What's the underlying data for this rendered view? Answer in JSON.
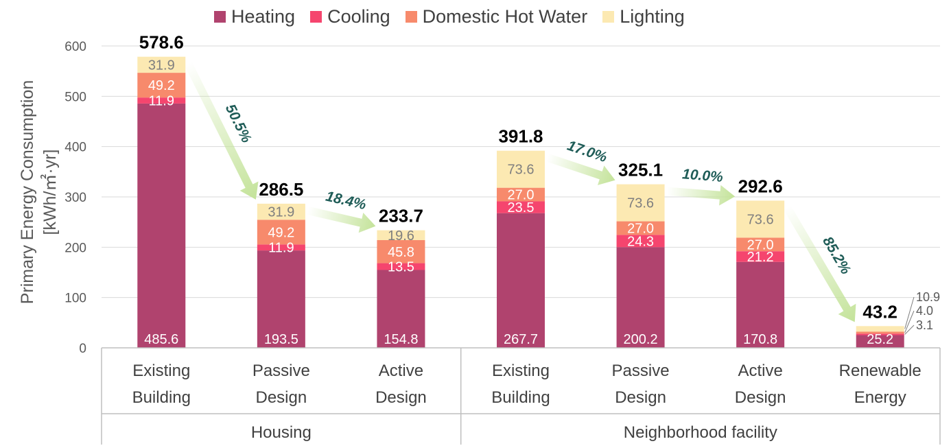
{
  "chart_data": {
    "type": "bar",
    "stacked": true,
    "ylabel": "Primary Energy Consumption",
    "ylabel_unit": "[kWh/㎡·yr]",
    "ylim": [
      0,
      600
    ],
    "yticks": [
      0,
      100,
      200,
      300,
      400,
      500,
      600
    ],
    "grid": true,
    "legend": {
      "placement": "top"
    },
    "categories": [
      "Existing Building",
      "Passive Design",
      "Active Design",
      "Existing Building",
      "Passive Design",
      "Active Design",
      "Renewable Energy"
    ],
    "category_lines": [
      [
        "Existing",
        "Building"
      ],
      [
        "Passive",
        "Design"
      ],
      [
        "Active",
        "Design"
      ],
      [
        "Existing",
        "Building"
      ],
      [
        "Passive",
        "Design"
      ],
      [
        "Active",
        "Design"
      ],
      [
        "Renewable",
        "Energy"
      ]
    ],
    "groups": [
      {
        "label": "Housing",
        "start": 0,
        "end": 2
      },
      {
        "label": "Neighborhood facility",
        "start": 3,
        "end": 6
      }
    ],
    "series": [
      {
        "name": "Heating",
        "color": "#B0436E",
        "label_color": "#FFFFFF",
        "values": [
          485.6,
          193.5,
          154.8,
          267.7,
          200.2,
          170.8,
          25.2
        ],
        "labels": [
          "485.6",
          "193.5",
          "154.8",
          "267.7",
          "200.2",
          "170.8",
          "25.2"
        ]
      },
      {
        "name": "Cooling",
        "color": "#F5456E",
        "label_color": "#FFFFFF",
        "values": [
          11.9,
          11.9,
          13.5,
          23.5,
          24.3,
          21.2,
          3.1
        ],
        "labels": [
          "11.9",
          "11.9",
          "13.5",
          "23.5",
          "24.3",
          "21.2",
          ""
        ]
      },
      {
        "name": "Domestic Hot Water",
        "color": "#F78A6C",
        "label_color": "#FFFFFF",
        "values": [
          49.2,
          49.2,
          45.8,
          27.0,
          27.0,
          27.0,
          4.0
        ],
        "labels": [
          "49.2",
          "49.2",
          "45.8",
          "27.0",
          "27.0",
          "27.0",
          ""
        ]
      },
      {
        "name": "Lighting",
        "color": "#FCE9B2",
        "label_color": "#7F7F7F",
        "values": [
          31.9,
          31.9,
          19.6,
          73.6,
          73.6,
          73.6,
          10.9
        ],
        "labels": [
          "31.9",
          "31.9",
          "19.6",
          "73.6",
          "73.6",
          "73.6",
          ""
        ]
      }
    ],
    "totals": [
      "578.6",
      "286.5",
      "233.7",
      "391.8",
      "325.1",
      "292.6",
      "43.2"
    ],
    "side_labels": [
      "10.9",
      "4.0",
      "3.1"
    ],
    "reductions": [
      {
        "from": 0,
        "to": 1,
        "label": "50.5%"
      },
      {
        "from": 1,
        "to": 2,
        "label": "18.4%"
      },
      {
        "from": 3,
        "to": 4,
        "label": "17.0%"
      },
      {
        "from": 4,
        "to": 5,
        "label": "10.0%"
      },
      {
        "from": 5,
        "to": 6,
        "label": "85.2%"
      }
    ],
    "colors": {
      "total_text": "#000000",
      "reduction_text": "#1F5C57",
      "arrow": "#C4E39A",
      "axis_text": "#595959",
      "grid": "#D9D9D9"
    }
  }
}
